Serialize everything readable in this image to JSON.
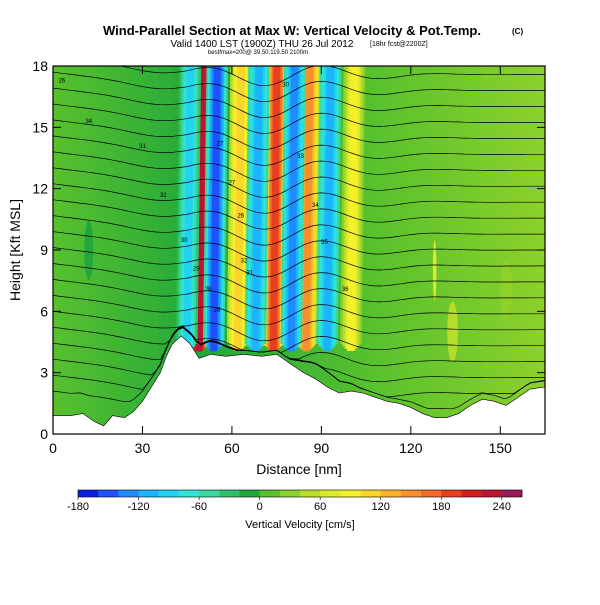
{
  "chart_data": {
    "type": "heatmap",
    "title": "Wind-Parallel Section at Max W: Vertical Velocity & Pot.Temp.",
    "title_mark": "(C)",
    "subtitle": "Valid 1400 LST (1900Z) THU 26 Jul 2012",
    "subtitle_note": "[18hr fcst@2200Z]",
    "info_line": "bestfmax=200@ 39.50,119.50 2100m",
    "xlabel": "Distance [nm]",
    "ylabel": "Height [Kft MSL]",
    "xlim": [
      0,
      165
    ],
    "ylim": [
      0,
      18
    ],
    "x_ticks": [
      "0",
      "30",
      "60",
      "90",
      "120",
      "150"
    ],
    "y_ticks": [
      "0",
      "3",
      "6",
      "9",
      "12",
      "15",
      "18"
    ],
    "colorbar": {
      "label": "Vertical Velocity [cm/s]",
      "range": [
        -180,
        260
      ],
      "tick_labels": [
        "-180",
        "-120",
        "-60",
        "0",
        "60",
        "120",
        "180",
        "240"
      ],
      "bins": [
        {
          "from": -180,
          "to": -160,
          "color": "#0a1fe0"
        },
        {
          "from": -160,
          "to": -140,
          "color": "#1f52ff"
        },
        {
          "from": -140,
          "to": -120,
          "color": "#1e8cff"
        },
        {
          "from": -120,
          "to": -100,
          "color": "#1ab4ff"
        },
        {
          "from": -100,
          "to": -80,
          "color": "#22d3f0"
        },
        {
          "from": -80,
          "to": -60,
          "color": "#31e4d4"
        },
        {
          "from": -60,
          "to": -40,
          "color": "#38d8a0"
        },
        {
          "from": -40,
          "to": -20,
          "color": "#2ec26a"
        },
        {
          "from": -20,
          "to": 0,
          "color": "#21a83b"
        },
        {
          "from": 0,
          "to": 20,
          "color": "#58c12d"
        },
        {
          "from": 20,
          "to": 40,
          "color": "#8dd12b"
        },
        {
          "from": 40,
          "to": 60,
          "color": "#b7dd2b"
        },
        {
          "from": 60,
          "to": 80,
          "color": "#dceb2a"
        },
        {
          "from": 80,
          "to": 100,
          "color": "#f5f02a"
        },
        {
          "from": 100,
          "to": 120,
          "color": "#fdd42a"
        },
        {
          "from": 120,
          "to": 140,
          "color": "#fbb22a"
        },
        {
          "from": 140,
          "to": 160,
          "color": "#f7902a"
        },
        {
          "from": 160,
          "to": 180,
          "color": "#f26a25"
        },
        {
          "from": 180,
          "to": 200,
          "color": "#e8401f"
        },
        {
          "from": 200,
          "to": 220,
          "color": "#d51f1f"
        },
        {
          "from": 220,
          "to": 240,
          "color": "#bb1434"
        },
        {
          "from": 240,
          "to": 260,
          "color": "#9b1a5a"
        }
      ]
    },
    "updrafts": [
      {
        "x": 50,
        "w": 240
      },
      {
        "x": 63,
        "w": 120
      },
      {
        "x": 75,
        "w": 200
      },
      {
        "x": 86,
        "w": 160
      },
      {
        "x": 101,
        "w": 100
      }
    ],
    "downdrafts": [
      {
        "x": 46,
        "w": -100
      },
      {
        "x": 55,
        "w": -160
      },
      {
        "x": 69,
        "w": -120
      },
      {
        "x": 81,
        "w": -140
      },
      {
        "x": 93,
        "w": -120
      }
    ],
    "terrain_heights_kft": [
      [
        0,
        0.9
      ],
      [
        6,
        0.9
      ],
      [
        10,
        1.0
      ],
      [
        14,
        0.6
      ],
      [
        17,
        0.4
      ],
      [
        20,
        0.9
      ],
      [
        24,
        0.8
      ],
      [
        27,
        1.1
      ],
      [
        30,
        1.6
      ],
      [
        33,
        2.3
      ],
      [
        36,
        3.0
      ],
      [
        38,
        3.8
      ],
      [
        40,
        4.4
      ],
      [
        43,
        4.8
      ],
      [
        46,
        4.4
      ],
      [
        49,
        3.7
      ],
      [
        53,
        3.9
      ],
      [
        58,
        3.8
      ],
      [
        64,
        3.9
      ],
      [
        70,
        3.8
      ],
      [
        75,
        3.9
      ],
      [
        80,
        3.4
      ],
      [
        84,
        3.0
      ],
      [
        88,
        2.7
      ],
      [
        92,
        2.3
      ],
      [
        96,
        2.0
      ],
      [
        100,
        2.1
      ],
      [
        104,
        2.0
      ],
      [
        108,
        1.8
      ],
      [
        112,
        1.6
      ],
      [
        116,
        1.5
      ],
      [
        120,
        1.3
      ],
      [
        124,
        1.0
      ],
      [
        128,
        0.8
      ],
      [
        132,
        0.8
      ],
      [
        136,
        1.0
      ],
      [
        140,
        1.4
      ],
      [
        144,
        1.7
      ],
      [
        148,
        1.6
      ],
      [
        152,
        1.4
      ],
      [
        156,
        1.8
      ],
      [
        160,
        2.2
      ],
      [
        165,
        2.3
      ]
    ],
    "isentrope_labels": [
      "26",
      "34",
      "31",
      "32",
      "30",
      "29",
      "28",
      "28",
      "27",
      "27",
      "26",
      "32",
      "31",
      "30",
      "33",
      "34",
      "35",
      "36"
    ],
    "grid": false
  }
}
